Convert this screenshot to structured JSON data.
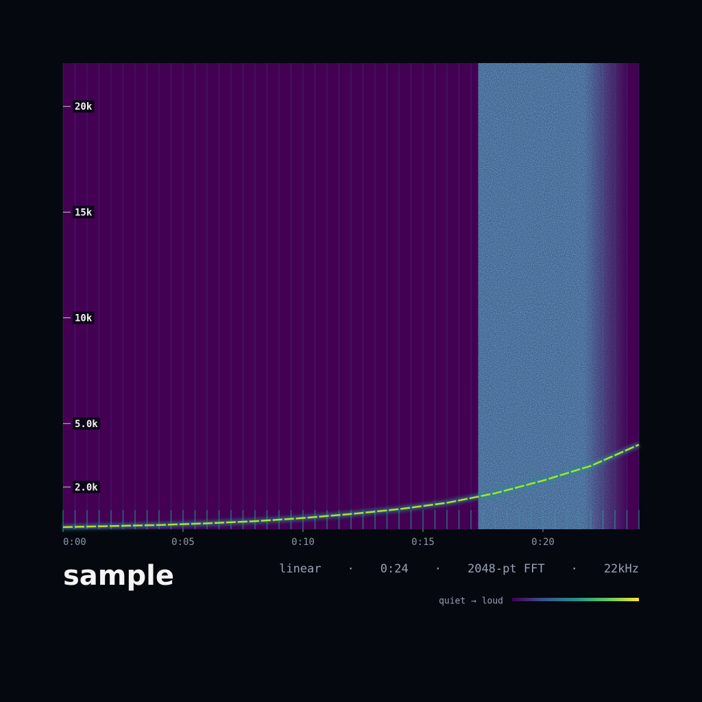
{
  "chart_data": {
    "type": "spectrogram",
    "title": "sample",
    "meta": [
      "linear",
      "0:24",
      "2048-pt FFT",
      "22kHz"
    ],
    "meta_separator": "·",
    "legend_label": "quiet → loud",
    "colorscale": [
      "#440154",
      "#3b528b",
      "#21918c",
      "#5ec962",
      "#fde725"
    ],
    "background_color": "#440154",
    "noise_color": "#3b6f98",
    "click_interval": 0.5,
    "noise_region": {
      "start": 17.3,
      "end": 23.6
    },
    "xlim": [
      0,
      24
    ],
    "ylim": [
      0,
      22050
    ],
    "xticks": [
      {
        "value": 0,
        "label": "0:00"
      },
      {
        "value": 5,
        "label": "0:05"
      },
      {
        "value": 10,
        "label": "0:10"
      },
      {
        "value": 15,
        "label": "0:15"
      },
      {
        "value": 20,
        "label": "0:20"
      }
    ],
    "yticks": [
      {
        "value": 2000,
        "label": "2.0k"
      },
      {
        "value": 5000,
        "label": "5.0k"
      },
      {
        "value": 10000,
        "label": "10k"
      },
      {
        "value": 15000,
        "label": "15k"
      },
      {
        "value": 20000,
        "label": "20k"
      }
    ],
    "x": [
      0,
      2,
      4,
      6,
      8,
      10,
      12,
      14,
      16,
      18,
      20,
      22,
      24
    ],
    "series": [
      {
        "name": "chirp",
        "color": "#b5de2b",
        "values": [
          100,
          150,
          200,
          280,
          380,
          530,
          720,
          950,
          1250,
          1700,
          2300,
          3000,
          4000
        ]
      }
    ]
  }
}
